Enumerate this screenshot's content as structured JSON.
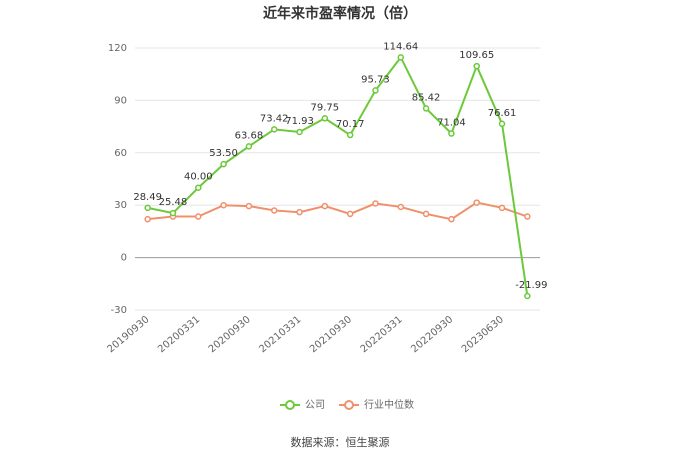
{
  "chart_data": {
    "type": "line",
    "title": "近年来市盈率情况（倍）",
    "categories": [
      "20190930",
      null,
      "20200331",
      null,
      "20200930",
      null,
      "20210331",
      null,
      "20210930",
      null,
      "20220331",
      null,
      "20220930",
      null,
      "20230630",
      null
    ],
    "series": [
      {
        "name": "公司",
        "color": "#6cc93a",
        "values": [
          28.49,
          25.48,
          40.0,
          53.5,
          63.68,
          73.42,
          71.93,
          79.75,
          70.17,
          95.73,
          114.64,
          85.42,
          71.04,
          109.65,
          76.61,
          -21.99
        ],
        "value_labels": [
          "28.49",
          "25.48",
          "40.00",
          "53.50",
          "63.68",
          "73.42",
          "71.93",
          "79.75",
          "70.17",
          "95.73",
          "114.64",
          "85.42",
          "71.04",
          "109.65",
          "76.61",
          "-21.99"
        ]
      },
      {
        "name": "行业中位数",
        "color": "#f0906a",
        "values": [
          22,
          23.5,
          23.5,
          30,
          29.5,
          27,
          26,
          29.5,
          25,
          31,
          29,
          25,
          22,
          31.5,
          28.5,
          23.5
        ]
      }
    ],
    "ylim": [
      -30,
      120
    ],
    "yticks": [
      -30,
      0,
      30,
      60,
      90,
      120
    ],
    "grid": true,
    "legend": "bottom",
    "source": "数据来源：恒生聚源"
  }
}
